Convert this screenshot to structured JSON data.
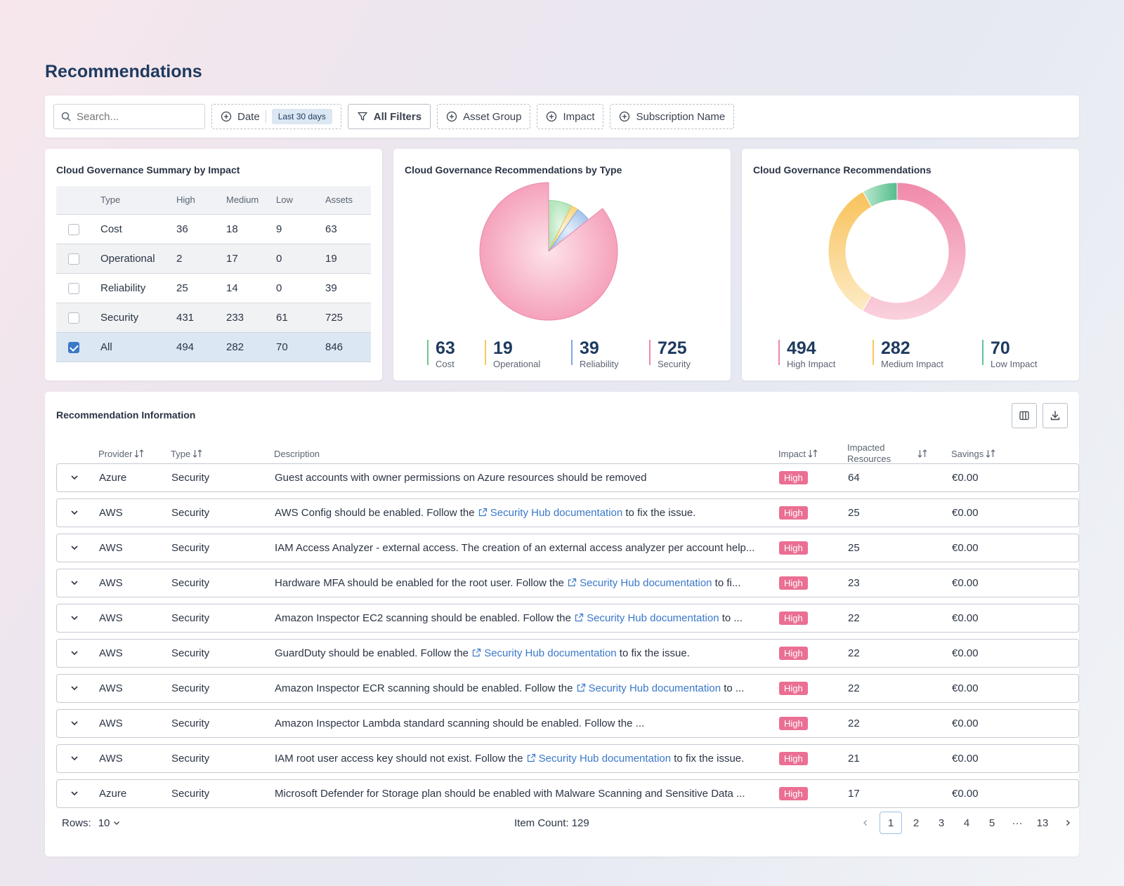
{
  "page": {
    "title": "Recommendations"
  },
  "filters": {
    "search_placeholder": "Search...",
    "date_label": "Date",
    "date_value": "Last 30 days",
    "all_filters": "All Filters",
    "asset_group": "Asset Group",
    "impact": "Impact",
    "subscription_name": "Subscription Name"
  },
  "summary": {
    "title": "Cloud Governance Summary by Impact",
    "headers": [
      "Type",
      "High",
      "Medium",
      "Low",
      "Assets"
    ],
    "rows": [
      {
        "type": "Cost",
        "high": "36",
        "medium": "18",
        "low": "9",
        "assets": "63"
      },
      {
        "type": "Operational",
        "high": "2",
        "medium": "17",
        "low": "0",
        "assets": "19"
      },
      {
        "type": "Reliability",
        "high": "25",
        "medium": "14",
        "low": "0",
        "assets": "39"
      },
      {
        "type": "Security",
        "high": "431",
        "medium": "233",
        "low": "61",
        "assets": "725"
      },
      {
        "type": "All",
        "high": "494",
        "medium": "282",
        "low": "70",
        "assets": "846"
      }
    ]
  },
  "by_type": {
    "title": "Cloud Governance Recommendations by Type",
    "stats": [
      {
        "value": "63",
        "label": "Cost"
      },
      {
        "value": "19",
        "label": "Operational"
      },
      {
        "value": "39",
        "label": "Reliability"
      },
      {
        "value": "725",
        "label": "Security"
      }
    ]
  },
  "by_impact": {
    "title": "Cloud Governance Recommendations",
    "stats": [
      {
        "value": "494",
        "label": "High Impact"
      },
      {
        "value": "282",
        "label": "Medium Impact"
      },
      {
        "value": "70",
        "label": "Low Impact"
      }
    ]
  },
  "chart_data": [
    {
      "type": "pie",
      "categories": [
        "Cost",
        "Operational",
        "Reliability",
        "Security"
      ],
      "values": [
        63,
        19,
        39,
        725
      ],
      "colors": [
        "#9fdcaa",
        "#f7cf73",
        "#93b8e6",
        "#f6a9bf"
      ]
    },
    {
      "type": "pie",
      "style": "donut",
      "categories": [
        "High Impact",
        "Medium Impact",
        "Low Impact"
      ],
      "values": [
        494,
        282,
        70
      ],
      "colors": [
        "#f092b0",
        "#f9c96a",
        "#5cc495"
      ]
    }
  ],
  "rec": {
    "title": "Recommendation Information",
    "headers": {
      "provider": "Provider",
      "type": "Type",
      "description": "Description",
      "impact": "Impact",
      "impacted_line1": "Impacted",
      "impacted_line2": "Resources",
      "savings": "Savings"
    },
    "rows": [
      {
        "provider": "Azure",
        "type": "Security",
        "pre": "Guest accounts with owner permissions on Azure resources should be removed",
        "link": "",
        "post": "",
        "impact": "High",
        "resources": "64",
        "savings": "€0.00"
      },
      {
        "provider": "AWS",
        "type": "Security",
        "pre": "AWS Config should be enabled. Follow the ",
        "link": "Security Hub documentation",
        "post": " to fix the issue.",
        "impact": "High",
        "resources": "25",
        "savings": "€0.00"
      },
      {
        "provider": "AWS",
        "type": "Security",
        "pre": "IAM Access Analyzer - external access. The creation of an external access analyzer per account help...",
        "link": "",
        "post": "",
        "impact": "High",
        "resources": "25",
        "savings": "€0.00"
      },
      {
        "provider": "AWS",
        "type": "Security",
        "pre": "Hardware MFA should be enabled for the root user. Follow the ",
        "link": "Security Hub documentation",
        "post": " to fi...",
        "impact": "High",
        "resources": "23",
        "savings": "€0.00"
      },
      {
        "provider": "AWS",
        "type": "Security",
        "pre": "Amazon Inspector EC2 scanning should be enabled. Follow the ",
        "link": "Security Hub documentation",
        "post": " to ...",
        "impact": "High",
        "resources": "22",
        "savings": "€0.00"
      },
      {
        "provider": "AWS",
        "type": "Security",
        "pre": "GuardDuty should be enabled. Follow the ",
        "link": "Security Hub documentation",
        "post": " to fix the issue.",
        "impact": "High",
        "resources": "22",
        "savings": "€0.00"
      },
      {
        "provider": "AWS",
        "type": "Security",
        "pre": "Amazon Inspector ECR scanning should be enabled. Follow the ",
        "link": "Security Hub documentation",
        "post": " to ...",
        "impact": "High",
        "resources": "22",
        "savings": "€0.00"
      },
      {
        "provider": "AWS",
        "type": "Security",
        "pre": "Amazon Inspector Lambda standard scanning should be enabled. Follow the ...",
        "link": "",
        "post": "",
        "impact": "High",
        "resources": "22",
        "savings": "€0.00"
      },
      {
        "provider": "AWS",
        "type": "Security",
        "pre": "IAM root user access key should not exist. Follow the ",
        "link": "Security Hub documentation",
        "post": " to fix the issue.",
        "impact": "High",
        "resources": "21",
        "savings": "€0.00"
      },
      {
        "provider": "Azure",
        "type": "Security",
        "pre": "Microsoft Defender for Storage plan should be enabled with Malware Scanning and Sensitive Data ...",
        "link": "",
        "post": "",
        "impact": "High",
        "resources": "17",
        "savings": "€0.00"
      }
    ],
    "footer": {
      "rows_label": "Rows:",
      "rows_value": "10",
      "item_count": "Item Count: 129",
      "pages": [
        "1",
        "2",
        "3",
        "4",
        "5",
        "···",
        "13"
      ]
    }
  }
}
